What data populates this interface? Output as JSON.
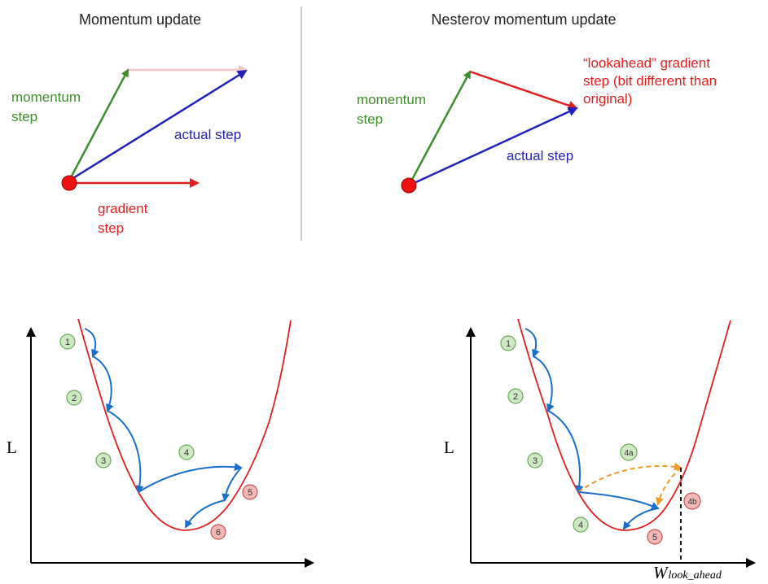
{
  "top_left": {
    "title": "Momentum update",
    "momentum_label": [
      "momentum",
      "step"
    ],
    "actual_label": "actual step",
    "gradient_label": [
      "gradient",
      "step"
    ]
  },
  "top_right": {
    "title": "Nesterov momentum update",
    "momentum_label": [
      "momentum",
      "step"
    ],
    "actual_label": "actual step",
    "lookahead_label": [
      "“lookahead” gradient",
      "step (bit different than",
      "original)"
    ]
  },
  "bottom_left": {
    "y_label": "L",
    "badges": [
      "1",
      "2",
      "3",
      "4",
      "5",
      "6"
    ]
  },
  "bottom_right": {
    "y_label": "L",
    "badges": [
      "1",
      "2",
      "3",
      "4a",
      "4",
      "4b",
      "5"
    ],
    "x_marker_main": "W",
    "x_marker_sub": "look_ahead"
  },
  "colors": {
    "green": "#3e8e2c",
    "blue": "#2222bb",
    "red": "#e02020",
    "curve_blue": "#1a6fc9",
    "orange": "#f09a2a",
    "badge_green_fill": "#cfe8c4",
    "badge_green_stroke": "#6aa85a",
    "badge_red_fill": "#f2b8b8",
    "badge_red_stroke": "#c85050"
  }
}
